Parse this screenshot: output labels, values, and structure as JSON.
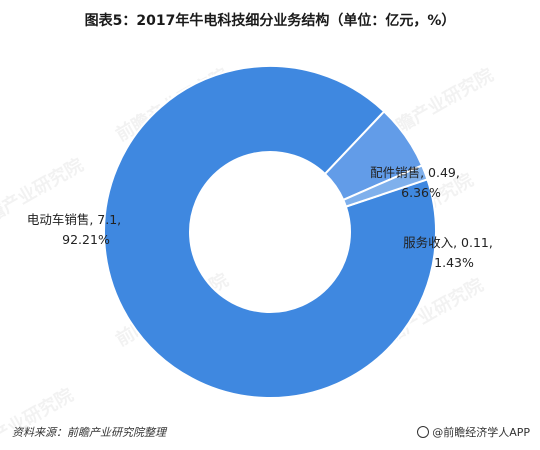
{
  "page": {
    "title": "图表5：2017年牛电科技细分业务结构（单位：亿元，%）",
    "source": "资料来源：前瞻产业研究院整理",
    "brand": "@前瞻经济学人APP"
  },
  "chart_data": {
    "type": "pie",
    "variant": "donut",
    "title": "图表5：2017年牛电科技细分业务结构（单位：亿元，%）",
    "unit": "亿元",
    "legend": "none",
    "series": [
      {
        "name": "电动车销售",
        "value": 7.1,
        "percent": "92.21%",
        "color": "#3f88e0",
        "label_line1": "电动车销售, 7.1,",
        "label_line2": "92.21%"
      },
      {
        "name": "配件销售",
        "value": 0.49,
        "percent": "6.36%",
        "color": "#629ce8",
        "label_line1": "配件销售, 0.49,",
        "label_line2": "6.36%"
      },
      {
        "name": "服务收入",
        "value": 0.11,
        "percent": "1.43%",
        "color": "#7fb0ec",
        "label_line1": "服务收入, 0.11,",
        "label_line2": "1.43%"
      }
    ]
  },
  "watermark": "前瞻产业研究院"
}
